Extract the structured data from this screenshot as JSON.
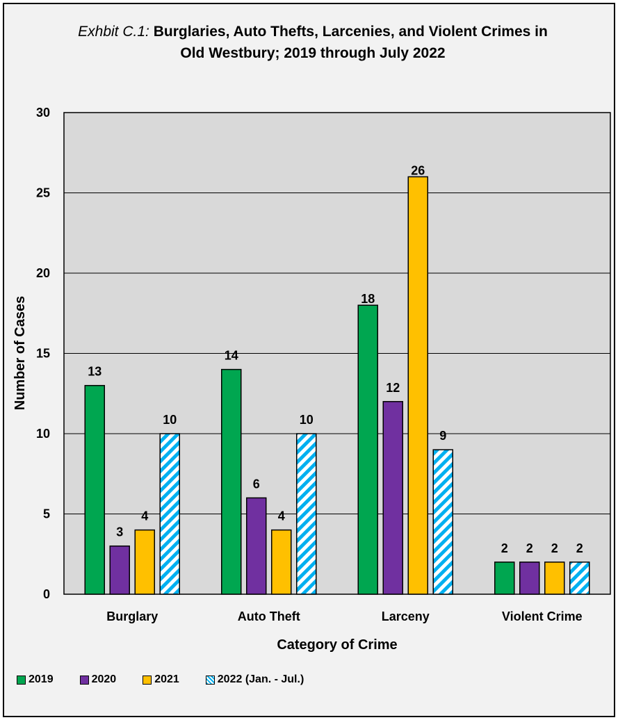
{
  "chart_data": {
    "type": "bar",
    "title_prefix": "Exhbit C.1:",
    "title": "Burglaries, Auto Thefts, Larcenies, and Violent Crimes in Old Westbury; 2019 through July 2022",
    "xlabel": "Category of Crime",
    "ylabel": "Number of Cases",
    "ylim": [
      0,
      30
    ],
    "yticks": [
      0,
      5,
      10,
      15,
      20,
      25,
      30
    ],
    "grid": true,
    "legend_position": "bottom-left",
    "categories": [
      "Burglary",
      "Auto Theft",
      "Larceny",
      "Violent Crime"
    ],
    "series": [
      {
        "name": "2019",
        "color": "#00a650",
        "pattern": "solid",
        "values": [
          13,
          14,
          18,
          2
        ]
      },
      {
        "name": "2020",
        "color": "#7030a0",
        "pattern": "solid",
        "values": [
          3,
          6,
          12,
          2
        ]
      },
      {
        "name": "2021",
        "color": "#ffc000",
        "pattern": "solid",
        "values": [
          4,
          4,
          26,
          2
        ]
      },
      {
        "name": "2022 (Jan. - Jul.)",
        "color": "#00b0f0",
        "pattern": "diagonal-stripes",
        "values": [
          10,
          10,
          9,
          2
        ]
      }
    ]
  }
}
